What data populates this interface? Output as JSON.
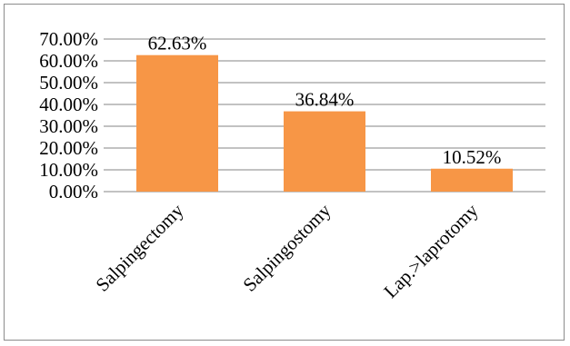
{
  "chart_data": {
    "type": "bar",
    "categories": [
      "Salpingectomy",
      "Salpingostomy",
      "Lap.>laprotomy"
    ],
    "values": [
      62.63,
      36.84,
      10.52
    ],
    "data_labels": [
      "62.63%",
      "36.84%",
      "10.52%"
    ],
    "title": "",
    "xlabel": "",
    "ylabel": "",
    "ylim": [
      0,
      70
    ],
    "yticks": [
      0,
      10,
      20,
      30,
      40,
      50,
      60,
      70
    ],
    "ytick_labels": [
      "0.00%",
      "10.00%",
      "20.00%",
      "30.00%",
      "40.00%",
      "50.00%",
      "60.00%",
      "70.00%"
    ],
    "grid": true,
    "legend": "none",
    "bar_color": "#f79646",
    "grid_color": "#868686"
  }
}
